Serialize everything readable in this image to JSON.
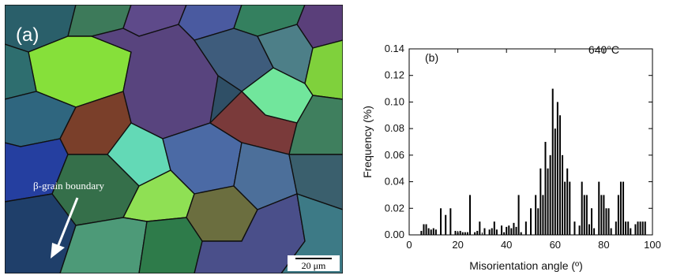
{
  "micrograph": {
    "panel_label": "(a)",
    "annotation": "β-grain boundary",
    "scale_bar": "20 μm"
  },
  "chart_data": {
    "type": "bar",
    "panel_label": "(b)",
    "annotation": "640°C",
    "xlabel": "Misorientation angle (º)",
    "ylabel": "Frequency (%)",
    "xlim": [
      0,
      100
    ],
    "ylim": [
      0,
      0.14
    ],
    "xticks": [
      "0",
      "20",
      "40",
      "60",
      "80",
      "100"
    ],
    "yticks": [
      "0.00",
      "0.02",
      "0.04",
      "0.06",
      "0.08",
      "0.10",
      "0.12",
      "0.14"
    ],
    "x": [
      5,
      6,
      7,
      8,
      9,
      10,
      11,
      13,
      15,
      17,
      19,
      20,
      21,
      22,
      23,
      24,
      25,
      27,
      28,
      29,
      31,
      33,
      34,
      35,
      36,
      38,
      39,
      40,
      41,
      42,
      43,
      44,
      45,
      46,
      48,
      50,
      52,
      53,
      54,
      55,
      56,
      57,
      58,
      59,
      60,
      61,
      62,
      63,
      64,
      65,
      66,
      68,
      70,
      71,
      72,
      73,
      74,
      75,
      76,
      78,
      79,
      80,
      81,
      82,
      83,
      85,
      86,
      87,
      88,
      89,
      90,
      91,
      93,
      94,
      95,
      96,
      97
    ],
    "values": [
      0.003,
      0.008,
      0.008,
      0.005,
      0.004,
      0.005,
      0.004,
      0.02,
      0.015,
      0.02,
      0.003,
      0.002,
      0.003,
      0.002,
      0.002,
      0.002,
      0.03,
      0.002,
      0.003,
      0.01,
      0.005,
      0.004,
      0.005,
      0.01,
      0.004,
      0.007,
      0.002,
      0.006,
      0.007,
      0.005,
      0.009,
      0.006,
      0.03,
      0.002,
      0.01,
      0.02,
      0.03,
      0.02,
      0.05,
      0.03,
      0.07,
      0.05,
      0.06,
      0.11,
      0.08,
      0.1,
      0.09,
      0.06,
      0.04,
      0.05,
      0.04,
      0.01,
      0.007,
      0.04,
      0.03,
      0.03,
      0.008,
      0.02,
      0.005,
      0.04,
      0.03,
      0.03,
      0.02,
      0.02,
      0.005,
      0.01,
      0.03,
      0.04,
      0.04,
      0.01,
      0.01,
      0.005,
      0.008,
      0.01,
      0.01,
      0.01,
      0.01
    ],
    "grid": false,
    "colors": {
      "bars": "#000000",
      "axes": "#000000"
    }
  }
}
